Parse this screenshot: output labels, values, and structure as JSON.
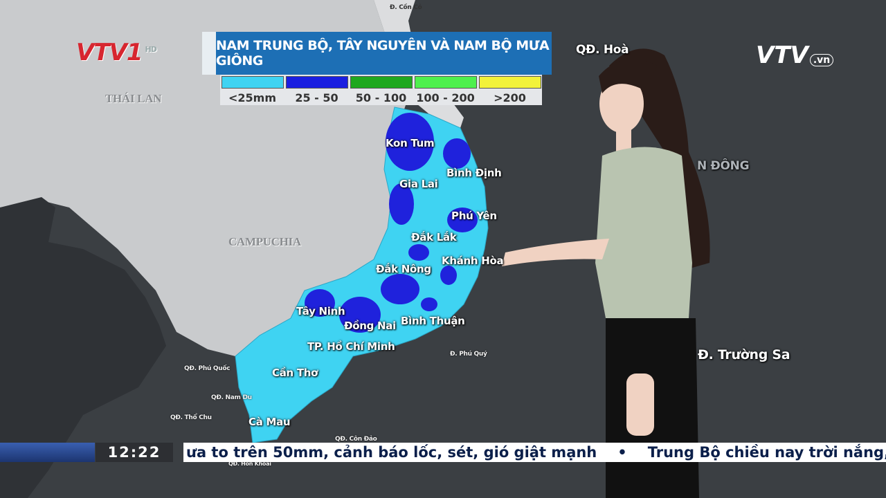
{
  "logos": {
    "channel": "VTV1",
    "channel_badge": "HD",
    "site": "VTV",
    "site_suffix": ".vn"
  },
  "title": "NAM TRUNG BỘ, TÂY NGUYÊN VÀ NAM BỘ MƯA GIÔNG",
  "legend": [
    {
      "label": "<25mm",
      "color": "#3fd3f2"
    },
    {
      "label": "25 - 50",
      "color": "#1a1ee0"
    },
    {
      "label": "50 - 100",
      "color": "#1fa81f"
    },
    {
      "label": "100 - 200",
      "color": "#4ef04e"
    },
    {
      "label": ">200",
      "color": "#f2f23a"
    }
  ],
  "map_labels": {
    "countries": [
      "THÁI LAN",
      "CAMPUCHIA"
    ],
    "sea": [
      "N ĐÔNG"
    ],
    "provinces": [
      "Kon Tum",
      "Bình Định",
      "Gia Lai",
      "Phú Yên",
      "Đắk Lắk",
      "Khánh Hòa",
      "Đắk Nông",
      "Tây Ninh",
      "Đồng Nai",
      "Bình Thuận",
      "TP. Hồ Chí Minh",
      "Cần Thơ",
      "Cà Mau"
    ],
    "islands": [
      "Đ. Cồn Cỏ",
      "QĐ. Hoà",
      "Đ. Trường Sa",
      "QĐ. Phú Quốc",
      "QĐ. Nam Du",
      "QĐ. Thổ Chu",
      "Đ. Phú Quý",
      "QĐ. Côn Đảo",
      "QĐ. Hòn Khoai"
    ]
  },
  "clock": "12:22",
  "ticker": [
    "ưa to trên 50mm, cảnh báo lốc, sét, gió giật mạnh",
    "•",
    "Trung Bộ chiều nay trời nắng, c"
  ]
}
